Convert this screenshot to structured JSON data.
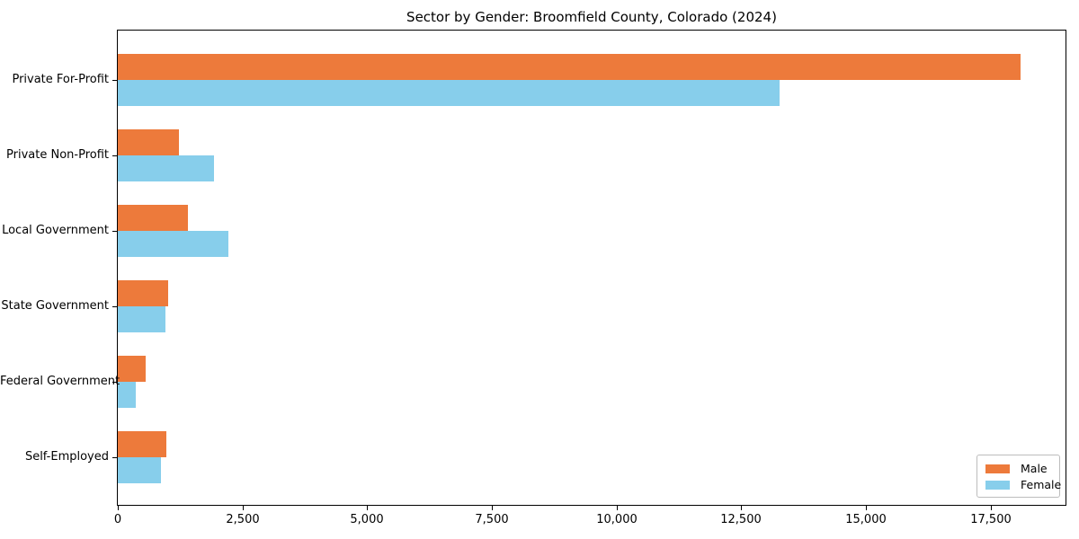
{
  "chart_data": {
    "type": "bar",
    "orientation": "horizontal",
    "title": "Sector by Gender: Broomfield County, Colorado (2024)",
    "categories": [
      "Private For-Profit",
      "Private Non-Profit",
      "Local Government",
      "State Government",
      "Federal Government",
      "Self-Employed"
    ],
    "series": [
      {
        "name": "Male",
        "color": "#ed7a3b",
        "values": [
          18100,
          1220,
          1400,
          1010,
          560,
          980
        ]
      },
      {
        "name": "Female",
        "color": "#87ceeb",
        "values": [
          13270,
          1920,
          2220,
          950,
          360,
          870
        ]
      }
    ],
    "xlabel": "",
    "ylabel": "",
    "xlim": [
      0,
      19000
    ],
    "xticks": [
      0,
      2500,
      5000,
      7500,
      10000,
      12500,
      15000,
      17500
    ],
    "xtick_labels": [
      "0",
      "2,500",
      "5,000",
      "7,500",
      "10,000",
      "12,500",
      "15,000",
      "17,500"
    ],
    "grid": false,
    "legend": {
      "position": "lower right"
    }
  }
}
